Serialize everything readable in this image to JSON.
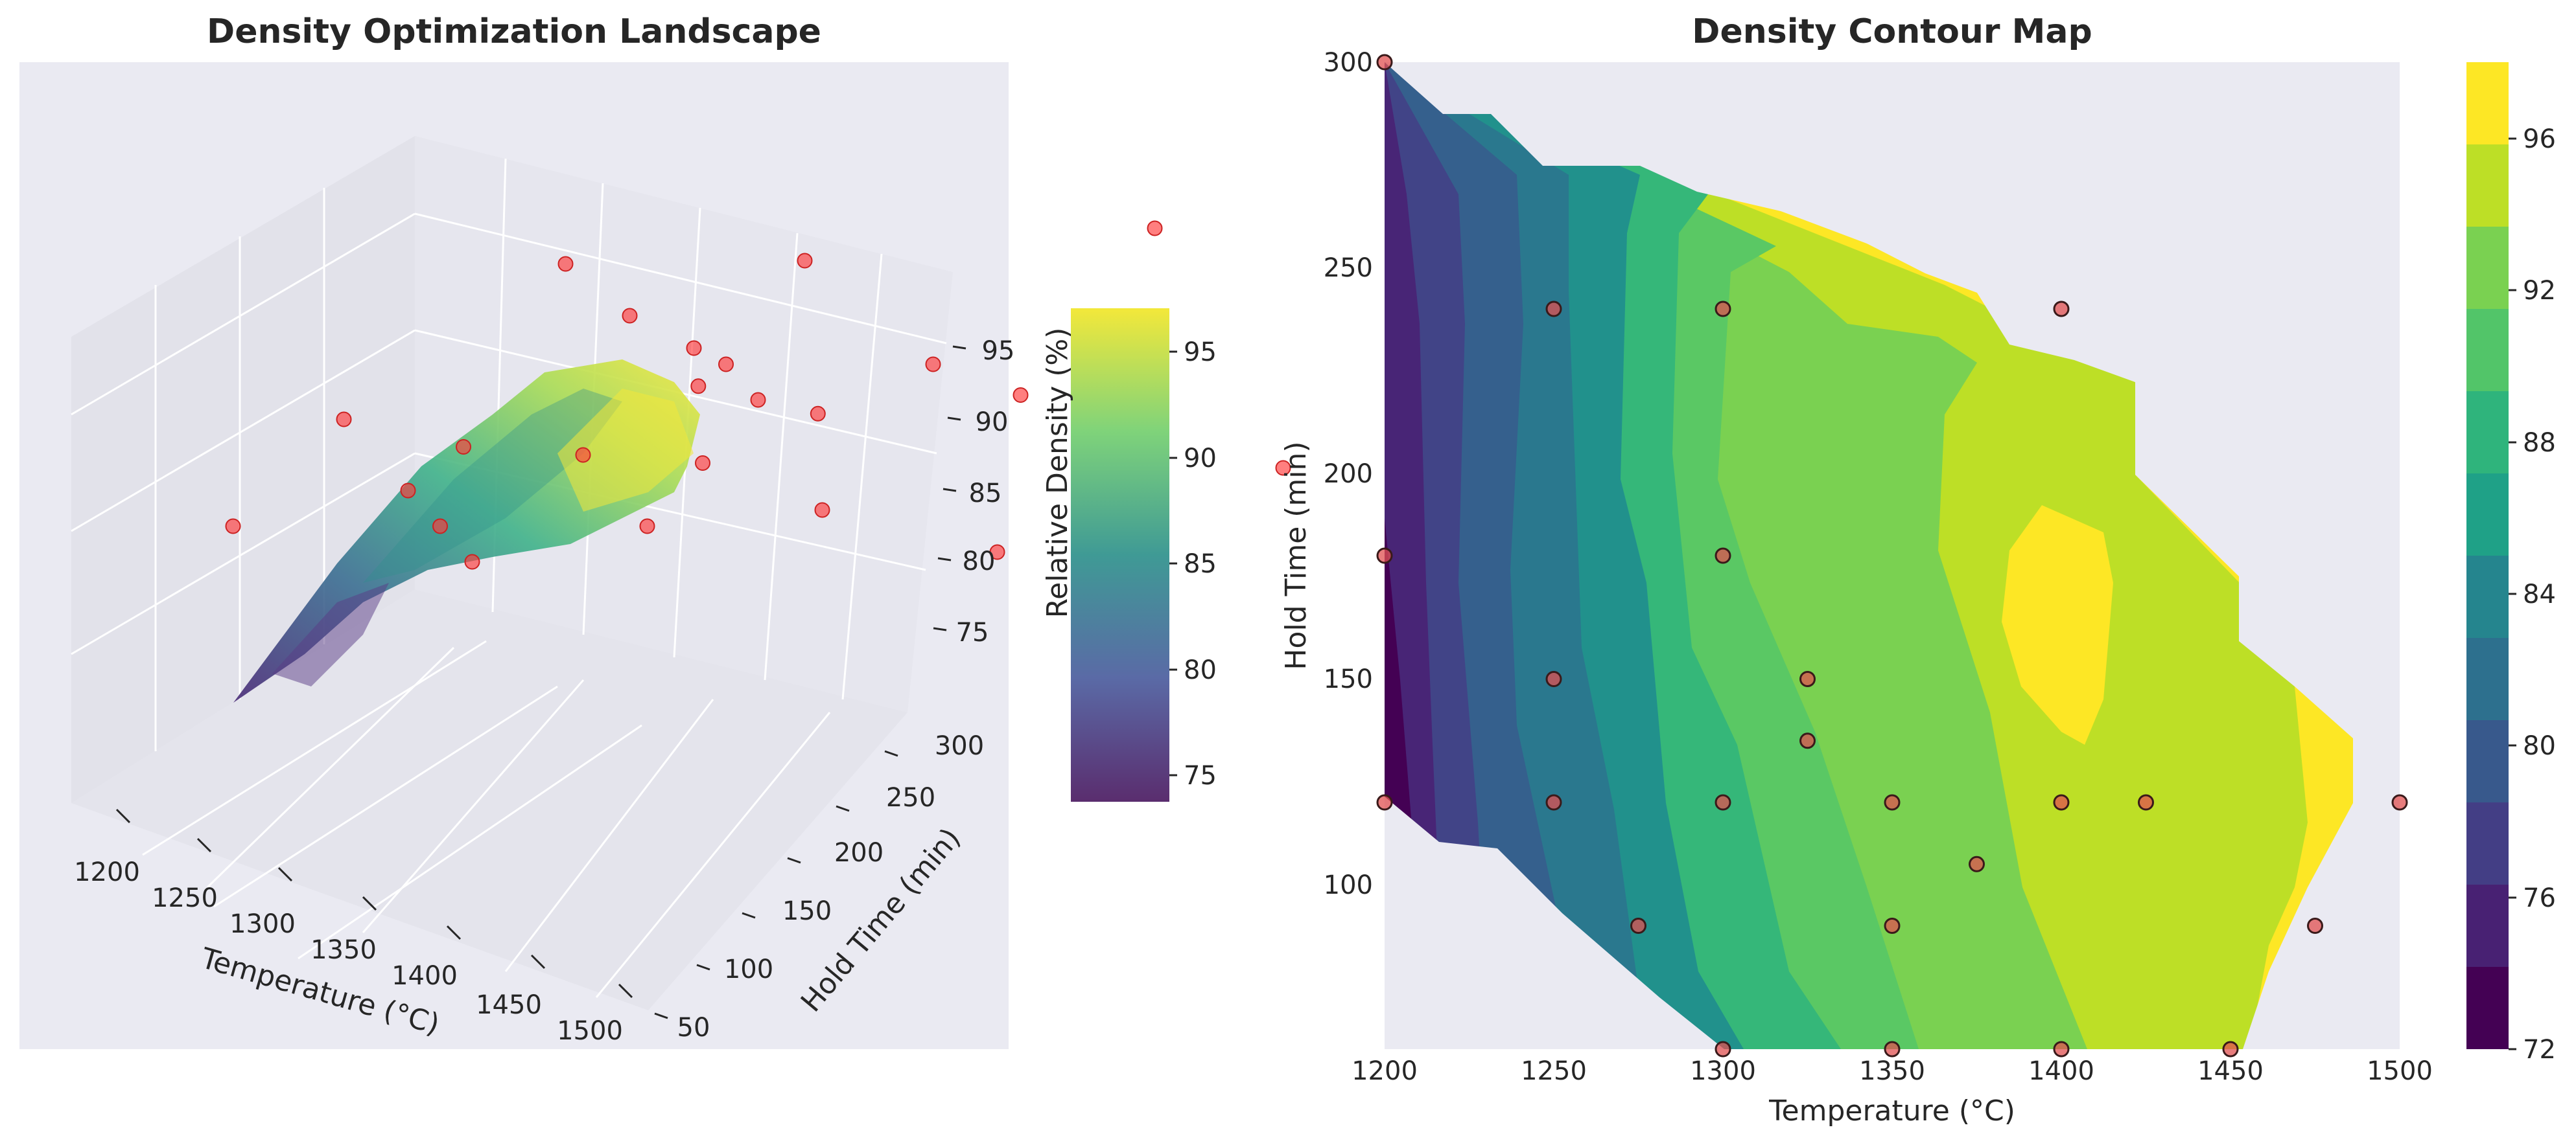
{
  "left": {
    "title": "Density Optimization Landscape",
    "xlabel": "Temperature (°C)",
    "ylabel": "Hold Time (min)",
    "zlabel": "Relative Density (%)",
    "x_ticks": [
      "1200",
      "1250",
      "1300",
      "1350",
      "1400",
      "1450",
      "1500"
    ],
    "y_ticks": [
      "50",
      "100",
      "150",
      "200",
      "250",
      "300"
    ],
    "z_ticks": [
      "75",
      "80",
      "85",
      "90",
      "95"
    ],
    "colorbar_ticks": [
      "75",
      "80",
      "85",
      "90",
      "95"
    ]
  },
  "right": {
    "title": "Density Contour Map",
    "xlabel": "Temperature (°C)",
    "ylabel": "Hold Time (min)",
    "x_ticks": [
      "1200",
      "1250",
      "1300",
      "1350",
      "1400",
      "1450",
      "1500"
    ],
    "y_ticks": [
      "100",
      "150",
      "200",
      "250",
      "300"
    ],
    "colorbar_ticks": [
      "72",
      "76",
      "80",
      "84",
      "88",
      "92",
      "96"
    ]
  },
  "colors": {
    "background": "#eaeaf2",
    "grid": "#ffffff",
    "points": "#ff3b3b",
    "viridis": [
      "#440154",
      "#482576",
      "#414487",
      "#35608d",
      "#2a788e",
      "#21918c",
      "#22a884",
      "#43bf71",
      "#7ad151",
      "#bddf26",
      "#fde725"
    ]
  },
  "chart_data": [
    {
      "type": "scatter",
      "subtype": "3d-surface",
      "title": "Density Optimization Landscape",
      "xlabel": "Temperature (°C)",
      "ylabel": "Hold Time (min)",
      "zlabel": "Relative Density (%)",
      "xlim": [
        1180,
        1520
      ],
      "ylim": [
        20,
        320
      ],
      "zlim": [
        72,
        98
      ],
      "colormap": "viridis",
      "colorbar_range": [
        74,
        97
      ],
      "points": [
        {
          "x": 1200,
          "y": 300,
          "z": 74
        },
        {
          "x": 1200,
          "y": 180,
          "z": 75
        },
        {
          "x": 1200,
          "y": 120,
          "z": 74
        },
        {
          "x": 1250,
          "y": 240,
          "z": 79
        },
        {
          "x": 1250,
          "y": 150,
          "z": 79
        },
        {
          "x": 1250,
          "y": 120,
          "z": 79
        },
        {
          "x": 1275,
          "y": 90,
          "z": 81
        },
        {
          "x": 1300,
          "y": 240,
          "z": 85
        },
        {
          "x": 1300,
          "y": 180,
          "z": 85
        },
        {
          "x": 1300,
          "y": 120,
          "z": 84
        },
        {
          "x": 1300,
          "y": 60,
          "z": 83
        },
        {
          "x": 1325,
          "y": 150,
          "z": 88
        },
        {
          "x": 1325,
          "y": 135,
          "z": 88
        },
        {
          "x": 1350,
          "y": 120,
          "z": 90
        },
        {
          "x": 1350,
          "y": 90,
          "z": 89
        },
        {
          "x": 1350,
          "y": 60,
          "z": 88
        },
        {
          "x": 1375,
          "y": 105,
          "z": 92
        },
        {
          "x": 1400,
          "y": 240,
          "z": 93
        },
        {
          "x": 1400,
          "y": 120,
          "z": 95
        },
        {
          "x": 1400,
          "y": 60,
          "z": 92
        },
        {
          "x": 1425,
          "y": 120,
          "z": 95
        },
        {
          "x": 1450,
          "y": 60,
          "z": 93
        },
        {
          "x": 1475,
          "y": 90,
          "z": 96
        },
        {
          "x": 1500,
          "y": 120,
          "z": 96
        }
      ]
    },
    {
      "type": "heatmap",
      "subtype": "filled-contour",
      "title": "Density Contour Map",
      "xlabel": "Temperature (°C)",
      "ylabel": "Hold Time (min)",
      "xlim": [
        1200,
        1500
      ],
      "ylim": [
        60,
        300
      ],
      "levels": [
        72,
        74,
        76,
        78,
        80,
        82,
        84,
        86,
        88,
        90,
        92,
        94,
        96,
        98
      ],
      "colormap": "viridis",
      "points": [
        {
          "x": 1200,
          "y": 300
        },
        {
          "x": 1200,
          "y": 180
        },
        {
          "x": 1200,
          "y": 120
        },
        {
          "x": 1250,
          "y": 240
        },
        {
          "x": 1250,
          "y": 150
        },
        {
          "x": 1250,
          "y": 120
        },
        {
          "x": 1275,
          "y": 90
        },
        {
          "x": 1300,
          "y": 240
        },
        {
          "x": 1300,
          "y": 180
        },
        {
          "x": 1300,
          "y": 120
        },
        {
          "x": 1300,
          "y": 60
        },
        {
          "x": 1325,
          "y": 150
        },
        {
          "x": 1325,
          "y": 135
        },
        {
          "x": 1350,
          "y": 120
        },
        {
          "x": 1350,
          "y": 90
        },
        {
          "x": 1350,
          "y": 60
        },
        {
          "x": 1375,
          "y": 105
        },
        {
          "x": 1400,
          "y": 240
        },
        {
          "x": 1400,
          "y": 120
        },
        {
          "x": 1400,
          "y": 60
        },
        {
          "x": 1425,
          "y": 120
        },
        {
          "x": 1450,
          "y": 60
        },
        {
          "x": 1475,
          "y": 90
        },
        {
          "x": 1500,
          "y": 120
        }
      ]
    }
  ]
}
